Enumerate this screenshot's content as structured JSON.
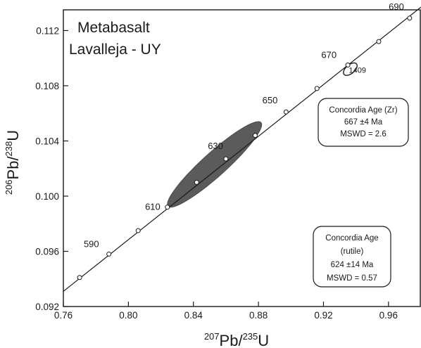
{
  "chart_data": {
    "type": "scatter",
    "title_lines": [
      "Metabasalt",
      "Lavalleja - UY"
    ],
    "xlabel": {
      "sup": "207",
      "main": "Pb/",
      "sup2": "235",
      "end": "U"
    },
    "ylabel": {
      "sup": "206",
      "main": "Pb/",
      "sup2": "238",
      "end": "U"
    },
    "xlim": [
      0.76,
      0.98
    ],
    "ylim": [
      0.092,
      0.1135
    ],
    "xticks": [
      0.76,
      0.8,
      0.84,
      0.88,
      0.92,
      0.96
    ],
    "yticks": [
      0.092,
      0.096,
      0.1,
      0.104,
      0.108,
      0.112
    ],
    "xtick_labels": [
      "0.76",
      "0.80",
      "0.84",
      "0.88",
      "0.92",
      "0.96"
    ],
    "ytick_labels": [
      "0.092",
      "0.096",
      "0.100",
      "0.104",
      "0.108",
      "0.112"
    ],
    "concordia": {
      "line": [
        [
          0.76,
          0.0931
        ],
        [
          0.98,
          0.1137
        ]
      ],
      "markers": [
        {
          "x": 0.77,
          "y": 0.0941
        },
        {
          "x": 0.788,
          "y": 0.0958,
          "label": "590"
        },
        {
          "x": 0.806,
          "y": 0.0975
        },
        {
          "x": 0.824,
          "y": 0.0992,
          "label": "610"
        },
        {
          "x": 0.842,
          "y": 0.101
        },
        {
          "x": 0.86,
          "y": 0.1027,
          "label": "630"
        },
        {
          "x": 0.878,
          "y": 0.1044
        },
        {
          "x": 0.897,
          "y": 0.1061,
          "label": "650"
        },
        {
          "x": 0.916,
          "y": 0.1078
        },
        {
          "x": 0.935,
          "y": 0.1095,
          "label": "670"
        },
        {
          "x": 0.954,
          "y": 0.1112
        },
        {
          "x": 0.973,
          "y": 0.1129,
          "label": "690"
        }
      ]
    },
    "ellipses": [
      {
        "name": "rutile",
        "cx": 0.853,
        "cy": 0.1023,
        "x_half_range": 0.029,
        "y_half_range": 0.0031,
        "rho": 0.93,
        "fill": "#5b5b5b"
      },
      {
        "name": "zircon",
        "cx": 0.9365,
        "cy": 0.1092,
        "x_half_range": 0.0042,
        "y_half_range": 0.00045,
        "rho": 0.55,
        "fill": "none",
        "label": "1409"
      }
    ],
    "boxes": [
      {
        "name": "zircon",
        "lines": [
          "Concordia Age (Zr)",
          "667 ±4 Ma",
          "MSWD = 2.6"
        ]
      },
      {
        "name": "rutile",
        "lines": [
          "Concordia Age",
          "(rutile)",
          "624 ±14 Ma",
          "MSWD = 0.57"
        ]
      }
    ],
    "colors": {
      "ink": "#1a1a1a",
      "ellipse_fill": "#5b5b5b",
      "marker_fill": "#ffffff"
    },
    "grid": false
  }
}
